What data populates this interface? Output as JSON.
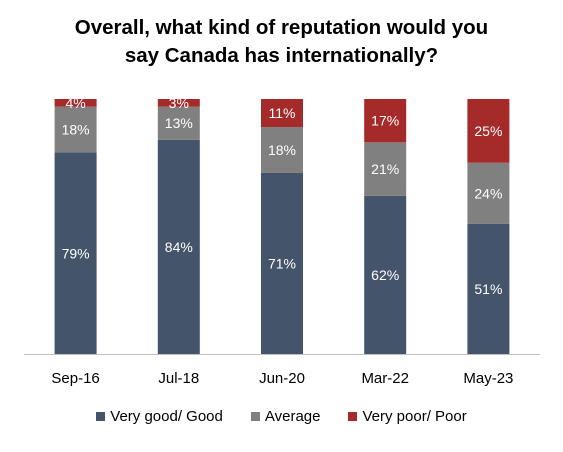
{
  "chart_data": {
    "type": "bar",
    "stacked": true,
    "title_lines": [
      "Overall, what kind of reputation would you",
      "say Canada has internationally?"
    ],
    "categories": [
      "Sep-16",
      "Jul-18",
      "Jun-20",
      "Mar-22",
      "May-23"
    ],
    "series": [
      {
        "name": "Very good/ Good",
        "color": "#44546a",
        "values": [
          79,
          84,
          71,
          62,
          51
        ]
      },
      {
        "name": "Average",
        "color": "#808080",
        "values": [
          18,
          13,
          18,
          21,
          24
        ]
      },
      {
        "name": "Very poor/ Poor",
        "color": "#a52a2a",
        "values": [
          4,
          3,
          11,
          17,
          25
        ]
      }
    ],
    "value_suffix": "%",
    "ylim": [
      0,
      100
    ],
    "grid": false,
    "legend_position": "bottom"
  }
}
